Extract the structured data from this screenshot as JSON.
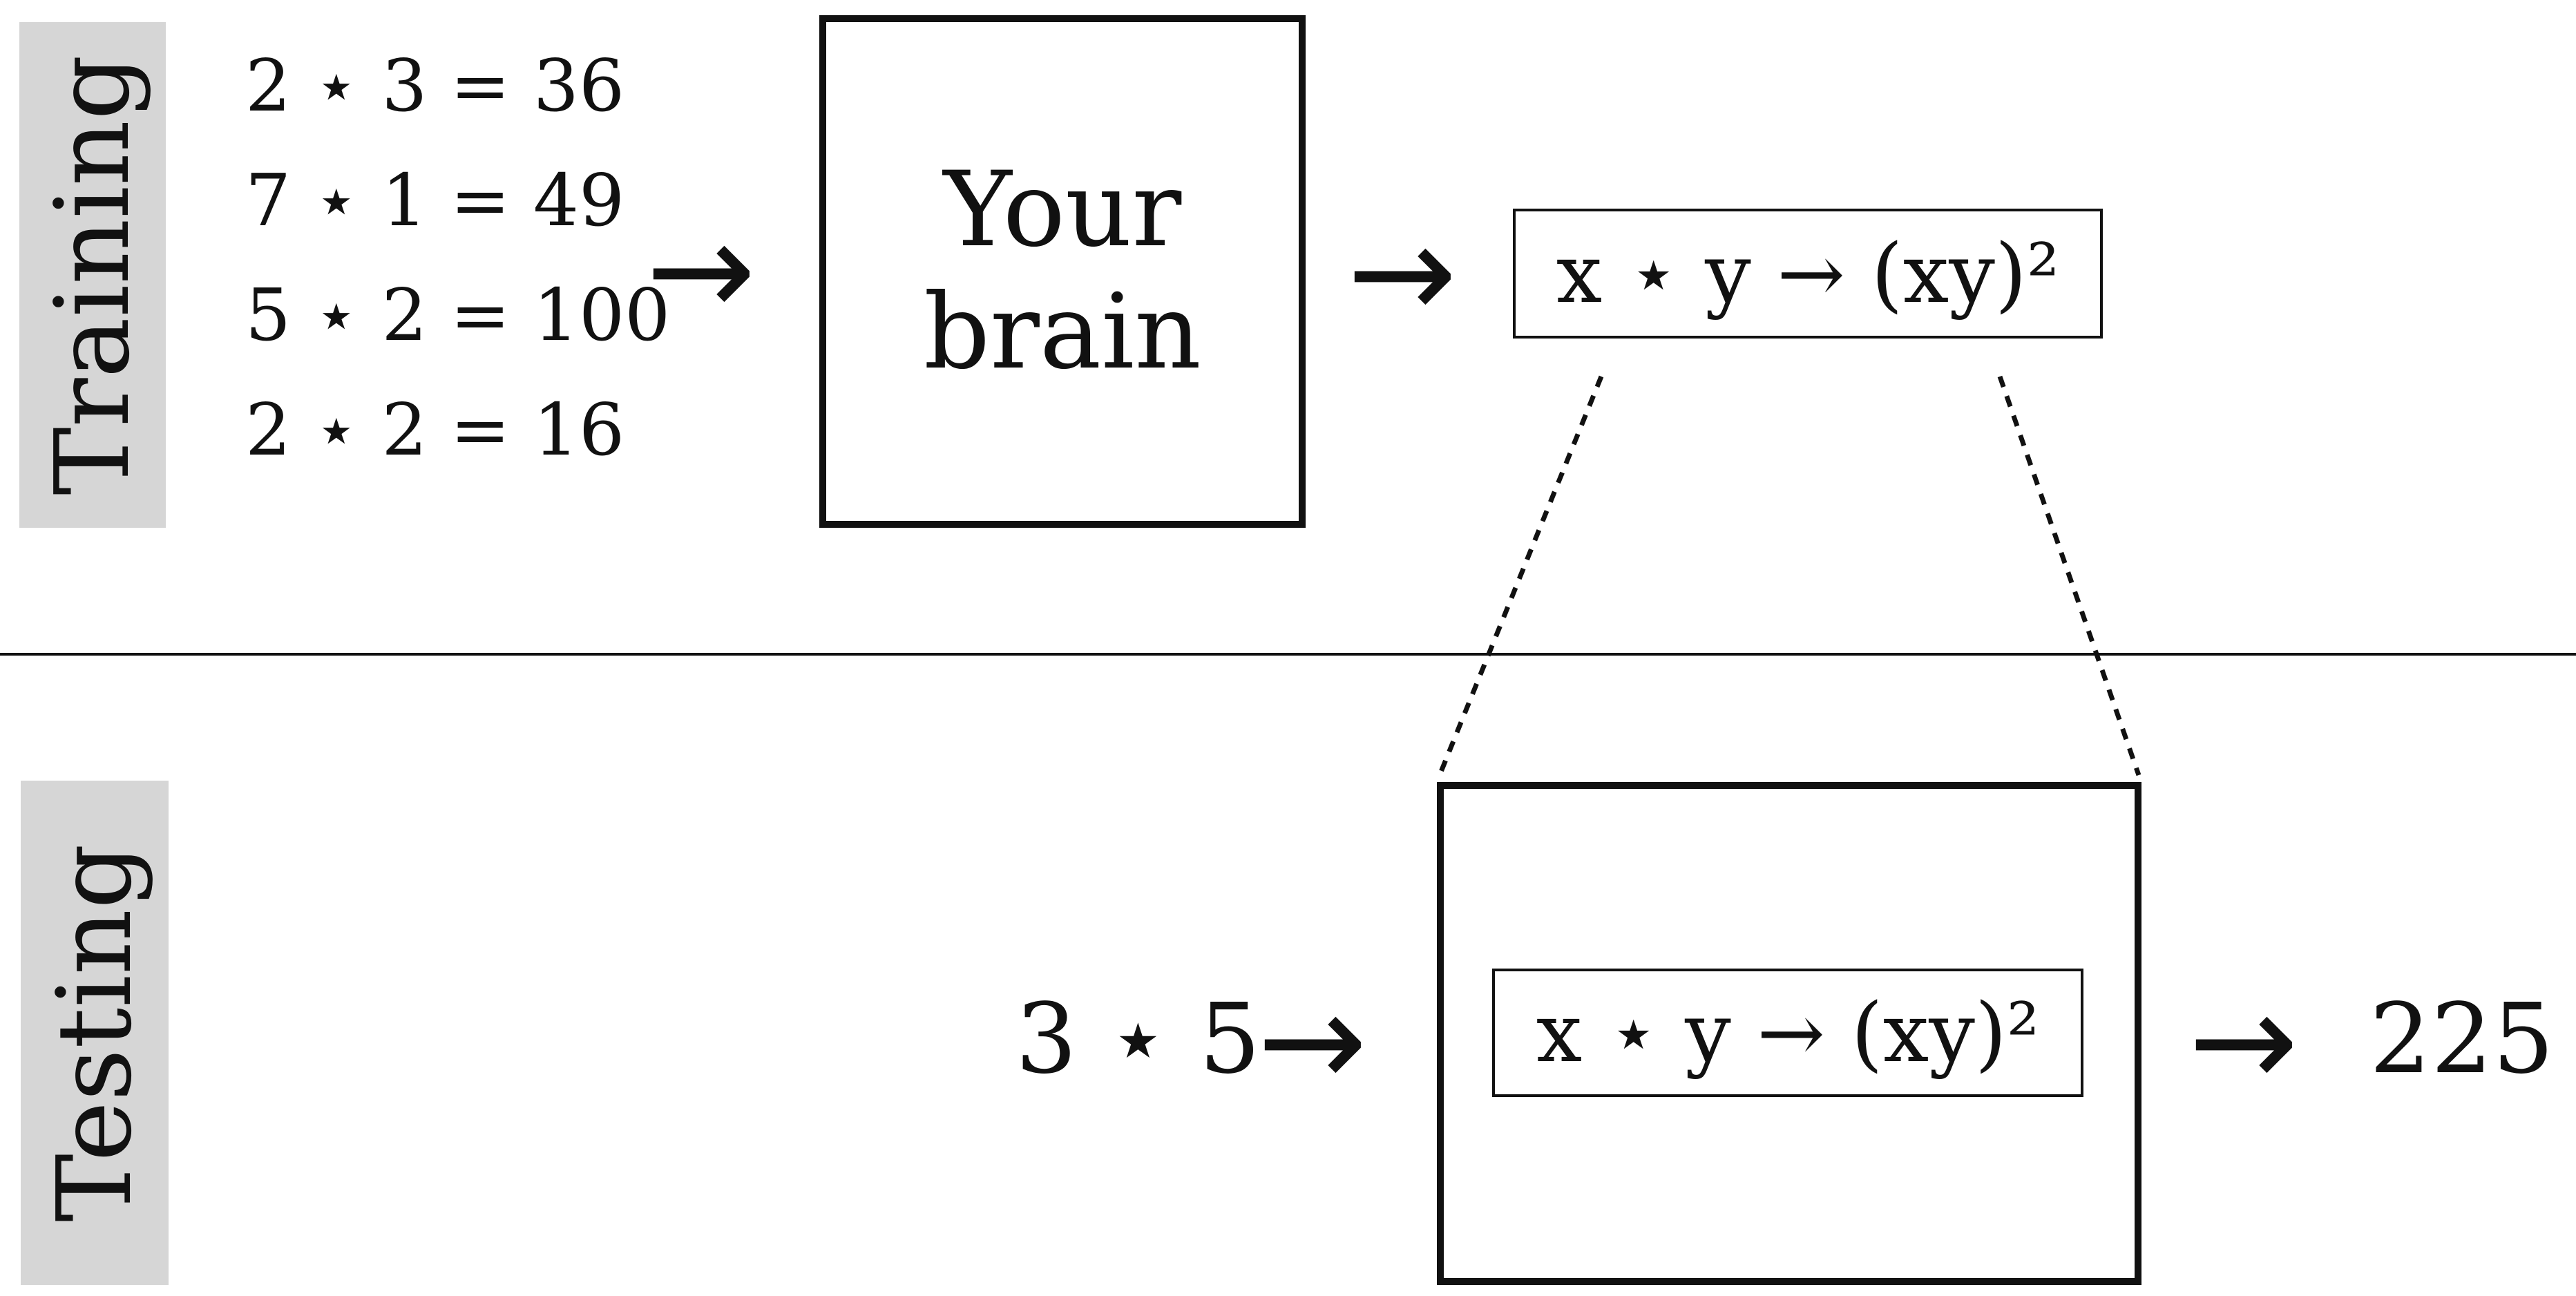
{
  "sections": {
    "training_label": "Training",
    "testing_label": "Testing"
  },
  "training": {
    "examples": [
      "2 ⋆ 3 = 36",
      "7 ⋆ 1 = 49",
      "5 ⋆ 2 = 100",
      "2 ⋆ 2 = 16"
    ],
    "brain_line1": "Your",
    "brain_line2": "brain",
    "learned_rule": "x ⋆ y → (xy)²"
  },
  "testing": {
    "query": "3 ⋆ 5",
    "applied_rule": "x ⋆ y → (xy)²",
    "answer": "225"
  },
  "arrow_glyph": "→"
}
